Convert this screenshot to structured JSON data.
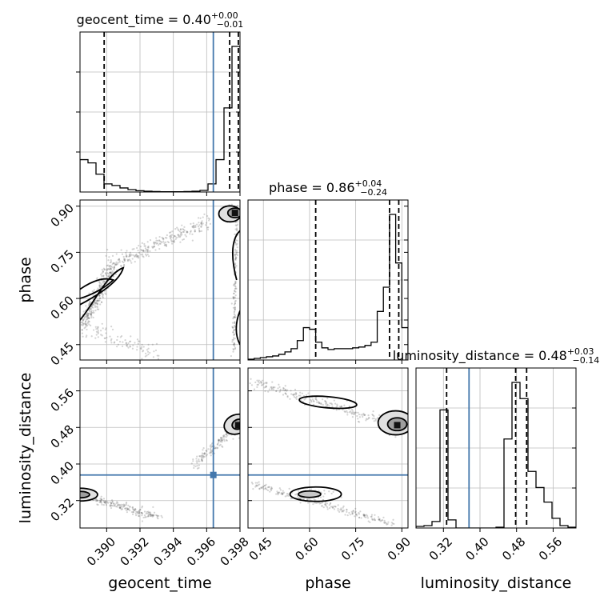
{
  "chart_data": {
    "type": "corner",
    "parameters": [
      {
        "name": "geocent_time",
        "label": "geocent_time",
        "title_main": "geocent_time = 0.40",
        "title_sup": "+0.00",
        "title_sub": "−0.01",
        "range": [
          0.3884,
          0.398
        ],
        "ticks": [
          0.39,
          0.392,
          0.394,
          0.396,
          0.398
        ],
        "tick_labels": [
          "0.390",
          "0.392",
          "0.394",
          "0.396",
          "0.398"
        ],
        "truth": 0.3964,
        "quantiles": [
          0.38985,
          0.39738,
          0.3979
        ],
        "hist_edges": [
          0.3884,
          0.38888,
          0.38936,
          0.38984,
          0.39032,
          0.3908,
          0.39128,
          0.39176,
          0.39224,
          0.39272,
          0.3932,
          0.39368,
          0.39416,
          0.39464,
          0.39512,
          0.3956,
          0.39608,
          0.39656,
          0.39704,
          0.39752,
          0.398
        ],
        "hist_counts": [
          0.2,
          0.18,
          0.11,
          0.05,
          0.04,
          0.025,
          0.015,
          0.008,
          0.005,
          0.003,
          0.002,
          0.002,
          0.002,
          0.003,
          0.005,
          0.01,
          0.05,
          0.2,
          0.52,
          0.9
        ]
      },
      {
        "name": "phase",
        "label": "phase",
        "title_main": "phase = 0.86",
        "title_sup": "+0.04",
        "title_sub": "−0.24",
        "range": [
          0.4,
          0.92
        ],
        "ticks": [
          0.45,
          0.6,
          0.75,
          0.9
        ],
        "tick_labels": [
          "0.45",
          "0.60",
          "0.75",
          "0.90"
        ],
        "truth": null,
        "quantiles": [
          0.62,
          0.86,
          0.89
        ],
        "hist_edges": [
          0.4,
          0.42,
          0.44,
          0.46,
          0.48,
          0.5,
          0.52,
          0.54,
          0.56,
          0.58,
          0.6,
          0.62,
          0.64,
          0.66,
          0.68,
          0.7,
          0.72,
          0.74,
          0.76,
          0.78,
          0.8,
          0.82,
          0.84,
          0.86,
          0.88,
          0.9,
          0.92
        ],
        "hist_counts": [
          0.005,
          0.01,
          0.015,
          0.02,
          0.025,
          0.035,
          0.05,
          0.07,
          0.12,
          0.2,
          0.19,
          0.11,
          0.075,
          0.065,
          0.07,
          0.07,
          0.07,
          0.075,
          0.08,
          0.09,
          0.11,
          0.3,
          0.45,
          0.9,
          0.6,
          0.2
        ]
      },
      {
        "name": "luminosity_distance",
        "label": "luminosity_distance",
        "title_main": "luminosity_distance = 0.48",
        "title_sup": "+0.03",
        "title_sub": "−0.14",
        "range": [
          0.26,
          0.61
        ],
        "ticks": [
          0.32,
          0.4,
          0.48,
          0.56
        ],
        "tick_labels": [
          "0.32",
          "0.40",
          "0.48",
          "0.56"
        ],
        "truth": 0.376,
        "quantiles": [
          0.327,
          0.478,
          0.502
        ],
        "hist_edges": [
          0.26,
          0.2775,
          0.295,
          0.3125,
          0.33,
          0.3475,
          0.365,
          0.3825,
          0.4,
          0.4175,
          0.435,
          0.4525,
          0.47,
          0.4875,
          0.505,
          0.5225,
          0.54,
          0.5575,
          0.575,
          0.5925,
          0.61
        ],
        "hist_counts": [
          0.01,
          0.015,
          0.04,
          0.73,
          0.05,
          0.0,
          0.0,
          0.0,
          0.0,
          0.0,
          0.005,
          0.55,
          0.9,
          0.8,
          0.35,
          0.25,
          0.16,
          0.06,
          0.015,
          0.005
        ]
      }
    ],
    "joint_truth": {
      "geocent_time": 0.3964,
      "luminosity_distance": 0.376
    },
    "grid": true,
    "colors": {
      "truth": "#4478ad",
      "hist": "#000000",
      "quantile": "#000000",
      "grid": "#bdbdbd",
      "samples": "#555555"
    }
  }
}
